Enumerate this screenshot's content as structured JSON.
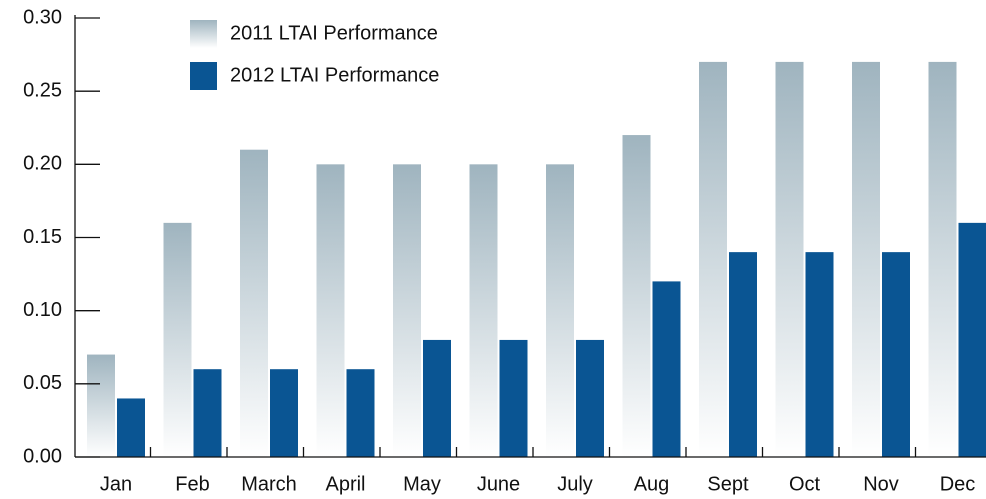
{
  "chart_data": {
    "type": "bar",
    "categories": [
      "Jan",
      "Feb",
      "March",
      "April",
      "May",
      "June",
      "July",
      "Aug",
      "Sept",
      "Oct",
      "Nov",
      "Dec"
    ],
    "series": [
      {
        "name": "2011 LTAI Performance",
        "color": "#9fb4bf",
        "values": [
          0.07,
          0.16,
          0.21,
          0.2,
          0.2,
          0.2,
          0.2,
          0.22,
          0.27,
          0.27,
          0.27,
          0.27
        ]
      },
      {
        "name": "2012 LTAI Performance",
        "color": "#0a5593",
        "values": [
          0.04,
          0.06,
          0.06,
          0.06,
          0.08,
          0.08,
          0.08,
          0.12,
          0.14,
          0.14,
          0.14,
          0.16
        ]
      }
    ],
    "ylim": [
      0,
      0.3
    ],
    "yticks": [
      {
        "value": 0,
        "label": "0.00"
      },
      {
        "value": 0.05,
        "label": "0.05"
      },
      {
        "value": 0.1,
        "label": "0.10"
      },
      {
        "value": 0.15,
        "label": "0.15"
      },
      {
        "value": 0.2,
        "label": "0.20"
      },
      {
        "value": 0.25,
        "label": "0.25"
      },
      {
        "value": 0.3,
        "label": "0.30"
      }
    ]
  }
}
